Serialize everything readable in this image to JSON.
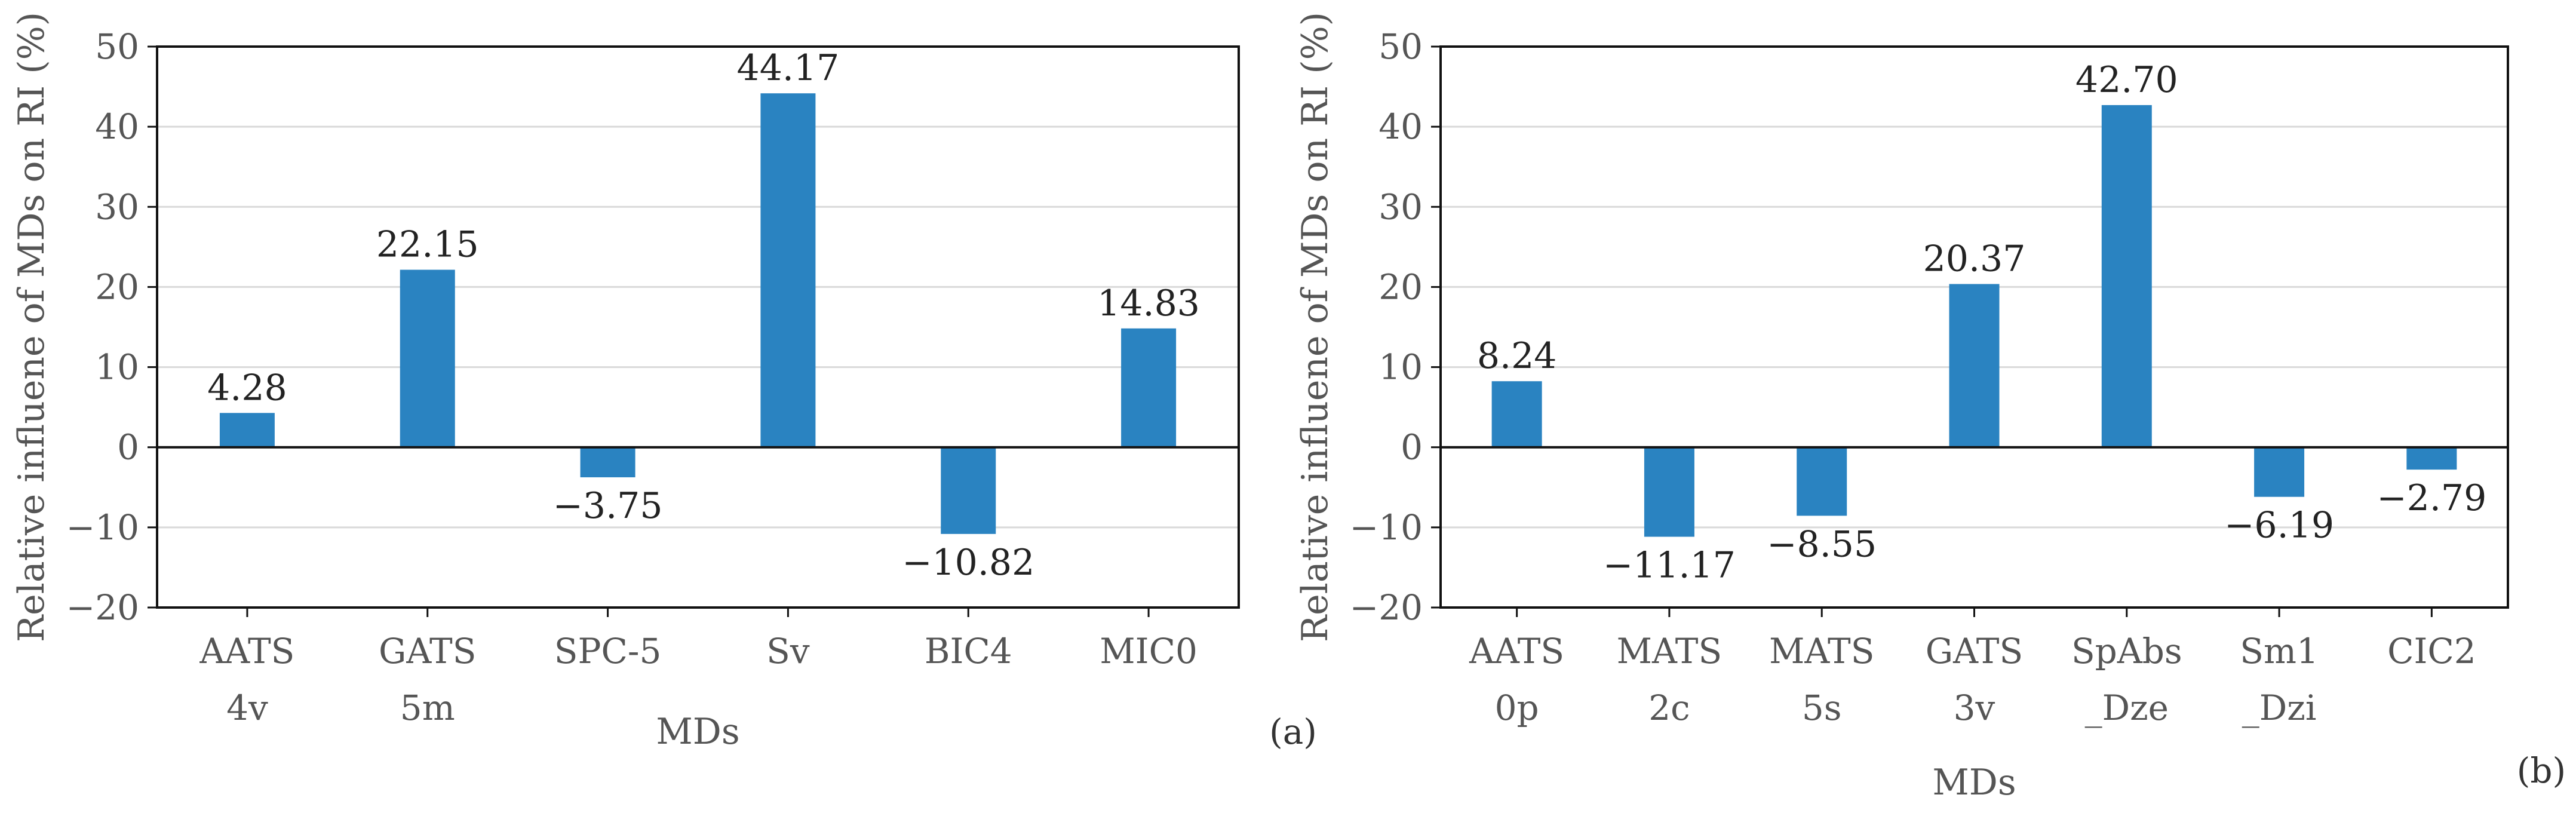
{
  "chart_data": [
    {
      "type": "bar",
      "panel": "(a)",
      "categories": [
        [
          "AATS",
          "4v"
        ],
        [
          "GATS",
          "5m"
        ],
        [
          "SPC-5"
        ],
        [
          "Sv"
        ],
        [
          "BIC4"
        ],
        [
          "MIC0"
        ]
      ],
      "values": [
        4.28,
        22.15,
        -3.75,
        44.17,
        -10.82,
        14.83
      ],
      "value_labels": [
        "4.28",
        "22.15",
        "−3.75",
        "44.17",
        "−10.82",
        "14.83"
      ],
      "xlabel": "MDs",
      "ylabel": "Relative influene of MDs on RI (%)",
      "ylim": [
        -20,
        50
      ],
      "yticks": [
        -20,
        -10,
        0,
        10,
        20,
        30,
        40,
        50
      ],
      "ytick_labels": [
        "−20",
        "−10",
        "0",
        "10",
        "20",
        "30",
        "40",
        "50"
      ],
      "grid": true,
      "color": "#2a83c1"
    },
    {
      "type": "bar",
      "panel": "(b)",
      "categories": [
        [
          "AATS",
          "0p"
        ],
        [
          "MATS",
          "2c"
        ],
        [
          "MATS",
          "5s"
        ],
        [
          "GATS",
          "3v"
        ],
        [
          "SpAbs",
          "_Dze"
        ],
        [
          "Sm1",
          "_Dzi"
        ],
        [
          "CIC2"
        ]
      ],
      "values": [
        8.24,
        -11.17,
        -8.55,
        20.37,
        42.7,
        -6.19,
        -2.79
      ],
      "value_labels": [
        "8.24",
        "−11.17",
        "−8.55",
        "20.37",
        "42.70",
        "−6.19",
        "−2.79"
      ],
      "xlabel": "MDs",
      "ylabel": "Relative influene of MDs on RI (%)",
      "ylim": [
        -20,
        50
      ],
      "yticks": [
        -20,
        -10,
        0,
        10,
        20,
        30,
        40,
        50
      ],
      "ytick_labels": [
        "−20",
        "−10",
        "0",
        "10",
        "20",
        "30",
        "40",
        "50"
      ],
      "grid": true,
      "color": "#2a83c1"
    }
  ]
}
